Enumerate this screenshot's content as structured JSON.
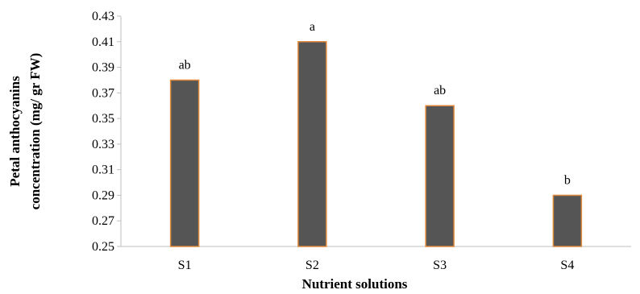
{
  "chart_data": {
    "type": "bar",
    "title": "",
    "xlabel": "Nutrient solutions",
    "ylabel_lines": [
      "Petal anthocyanins",
      "concentration (mg/ gr FW)"
    ],
    "categories": [
      "S1",
      "S2",
      "S3",
      "S4"
    ],
    "values": [
      0.38,
      0.41,
      0.36,
      0.29
    ],
    "significance_labels": [
      "ab",
      "a",
      "ab",
      "b"
    ],
    "ylim": [
      0.25,
      0.43
    ],
    "yticks": [
      "0.25",
      "0.27",
      "0.29",
      "0.31",
      "0.33",
      "0.35",
      "0.37",
      "0.39",
      "0.41",
      "0.43"
    ],
    "grid": false,
    "legend": "none",
    "colors": {
      "bar_fill": "#555555",
      "bar_stroke": "#e08a3c",
      "axis": "#bfbfbf"
    }
  }
}
